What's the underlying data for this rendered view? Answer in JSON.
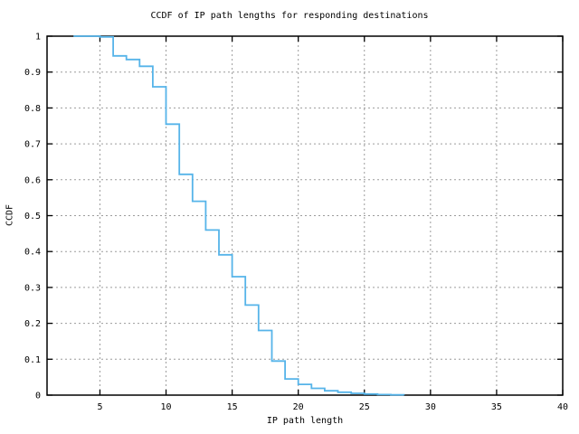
{
  "chart_data": {
    "type": "line",
    "style": "step-after",
    "title": "CCDF of IP path lengths for responding destinations",
    "xlabel": "IP path length",
    "ylabel": "CCDF",
    "xlim": [
      1,
      40
    ],
    "ylim": [
      0,
      1
    ],
    "xticks": [
      5,
      10,
      15,
      20,
      25,
      30,
      35,
      40
    ],
    "xtick_labels": [
      "5",
      "10",
      "15",
      "20",
      "25",
      "30",
      "35",
      "40"
    ],
    "yticks": [
      0,
      0.1,
      0.2,
      0.3,
      0.4,
      0.5,
      0.6,
      0.7,
      0.8,
      0.9,
      1
    ],
    "ytick_labels": [
      "0",
      "0.1",
      "0.2",
      "0.3",
      "0.4",
      "0.5",
      "0.6",
      "0.7",
      "0.8",
      "0.9",
      "1"
    ],
    "grid": true,
    "colors": {
      "line": "#56b4e9",
      "grid": "#9c9c9c",
      "axis": "#000000",
      "background": "#ffffff",
      "text": "#000000"
    },
    "points": [
      [
        3,
        1.0
      ],
      [
        4,
        1.0
      ],
      [
        5,
        0.998
      ],
      [
        6,
        0.945
      ],
      [
        7,
        0.935
      ],
      [
        8,
        0.916
      ],
      [
        9,
        0.859
      ],
      [
        10,
        0.755
      ],
      [
        11,
        0.615
      ],
      [
        12,
        0.54
      ],
      [
        13,
        0.46
      ],
      [
        14,
        0.391
      ],
      [
        15,
        0.33
      ],
      [
        16,
        0.251
      ],
      [
        17,
        0.18
      ],
      [
        18,
        0.095
      ],
      [
        19,
        0.045
      ],
      [
        20,
        0.03
      ],
      [
        21,
        0.019
      ],
      [
        22,
        0.012
      ],
      [
        23,
        0.008
      ],
      [
        24,
        0.005
      ],
      [
        25,
        0.003
      ],
      [
        26,
        0.0015
      ],
      [
        27,
        0.0008
      ],
      [
        28,
        0.0005
      ]
    ]
  }
}
